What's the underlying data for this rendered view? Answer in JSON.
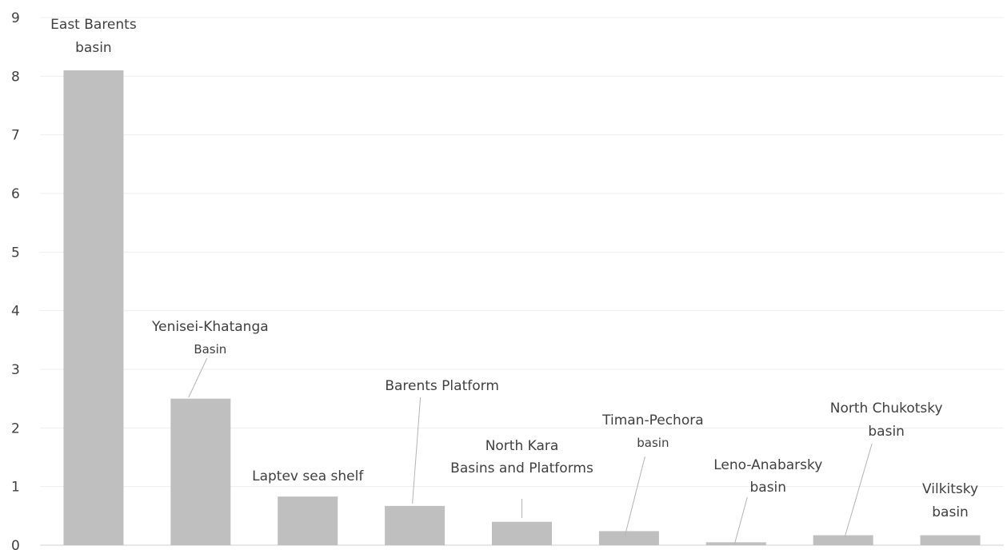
{
  "chart_data": {
    "type": "bar",
    "title": "",
    "xlabel": "",
    "ylabel": "",
    "ylim": [
      0,
      9
    ],
    "yticks": [
      "0",
      "1",
      "2",
      "3",
      "4",
      "5",
      "6",
      "7",
      "8",
      "9"
    ],
    "grid": true,
    "bar_color": "#bfbfbf",
    "categories": [
      [
        "East Barents",
        "basin"
      ],
      [
        "Yenisei-Khatanga",
        "Basin"
      ],
      [
        "Laptev sea shelf"
      ],
      [
        "Barents Platform"
      ],
      [
        "North Kara",
        "Basins and Platforms"
      ],
      [
        "Timan-Pechora",
        "basin"
      ],
      [
        "Leno-Anabarsky",
        "basin"
      ],
      [
        "North Chukotsky",
        "basin"
      ],
      [
        "Vilkitsky",
        "basin"
      ]
    ],
    "values": [
      8.1,
      2.5,
      0.83,
      0.67,
      0.4,
      0.24,
      0.05,
      0.17,
      0.17
    ]
  }
}
